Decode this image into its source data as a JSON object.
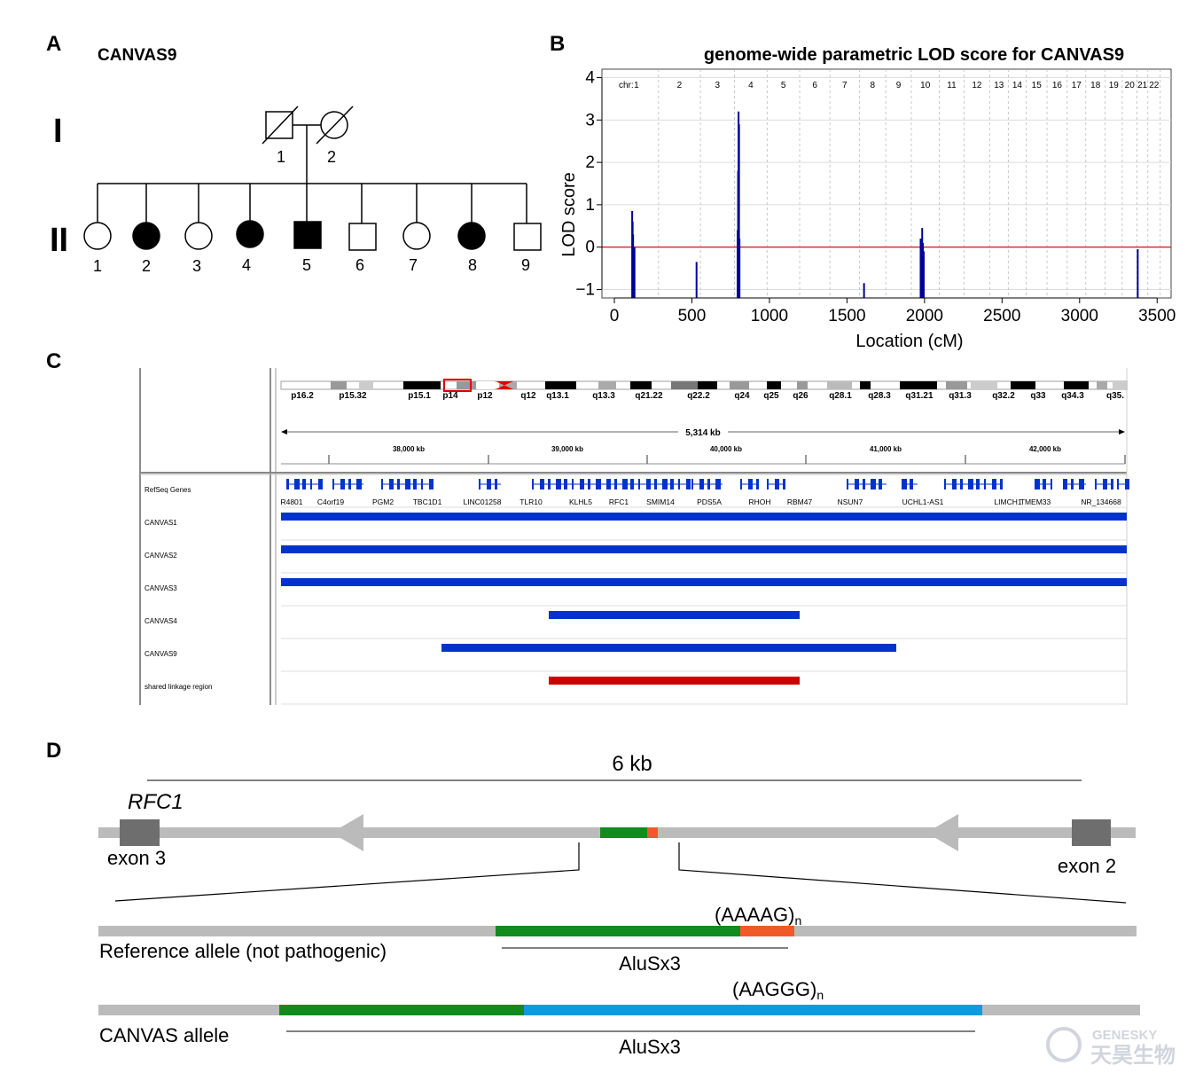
{
  "panels": {
    "A": "A",
    "B": "B",
    "C": "C",
    "D": "D"
  },
  "pedigree": {
    "family_name": "CANVAS9",
    "generations": [
      "I",
      "II"
    ],
    "gen1": [
      {
        "id": "1",
        "sex": "male",
        "affected": false,
        "deceased": true
      },
      {
        "id": "2",
        "sex": "female",
        "affected": false,
        "deceased": true
      }
    ],
    "gen2": [
      {
        "id": "1",
        "sex": "female",
        "affected": false
      },
      {
        "id": "2",
        "sex": "female",
        "affected": true
      },
      {
        "id": "3",
        "sex": "female",
        "affected": false
      },
      {
        "id": "4",
        "sex": "female",
        "affected": true
      },
      {
        "id": "5",
        "sex": "male",
        "affected": true
      },
      {
        "id": "6",
        "sex": "male",
        "affected": false
      },
      {
        "id": "7",
        "sex": "female",
        "affected": false
      },
      {
        "id": "8",
        "sex": "female",
        "affected": true
      },
      {
        "id": "9",
        "sex": "male",
        "affected": false
      }
    ]
  },
  "lod_chart": {
    "chart_data": {
      "type": "line",
      "title": "genome-wide parametric LOD score for CANVAS9",
      "xlabel": "Location (cM)",
      "ylabel": "LOD score",
      "xlim": [
        -80,
        3590
      ],
      "ylim": [
        -1.2,
        4.2
      ],
      "x_ticks": [
        0,
        500,
        1000,
        1500,
        2000,
        2500,
        3000,
        3500
      ],
      "y_ticks": [
        -1,
        0,
        1,
        2,
        3,
        4
      ],
      "threshold_line": 0,
      "threshold_color": "#cc0000",
      "series_color": "#000099",
      "chr_label_prefix": "chr:",
      "chromosomes": [
        {
          "name": "1",
          "start": 0,
          "end": 285
        },
        {
          "name": "2",
          "start": 285,
          "end": 555
        },
        {
          "name": "3",
          "start": 555,
          "end": 775
        },
        {
          "name": "4",
          "start": 775,
          "end": 985
        },
        {
          "name": "5",
          "start": 985,
          "end": 1195
        },
        {
          "name": "6",
          "start": 1195,
          "end": 1390
        },
        {
          "name": "7",
          "start": 1390,
          "end": 1580
        },
        {
          "name": "8",
          "start": 1580,
          "end": 1750
        },
        {
          "name": "9",
          "start": 1750,
          "end": 1915
        },
        {
          "name": "10",
          "start": 1915,
          "end": 2095
        },
        {
          "name": "11",
          "start": 2095,
          "end": 2255
        },
        {
          "name": "12",
          "start": 2255,
          "end": 2420
        },
        {
          "name": "13",
          "start": 2420,
          "end": 2540
        },
        {
          "name": "14",
          "start": 2540,
          "end": 2655
        },
        {
          "name": "15",
          "start": 2655,
          "end": 2790
        },
        {
          "name": "16",
          "start": 2790,
          "end": 2920
        },
        {
          "name": "17",
          "start": 2920,
          "end": 3040
        },
        {
          "name": "18",
          "start": 3040,
          "end": 3165
        },
        {
          "name": "19",
          "start": 3165,
          "end": 3275
        },
        {
          "name": "20",
          "start": 3275,
          "end": 3370
        },
        {
          "name": "21",
          "start": 3370,
          "end": 3440
        },
        {
          "name": "22",
          "start": 3440,
          "end": 3520
        }
      ],
      "peaks": [
        {
          "x": 115,
          "y": 0.85
        },
        {
          "x": 118,
          "y": 0.6
        },
        {
          "x": 121,
          "y": 0.3
        },
        {
          "x": 124,
          "y": -0.2
        },
        {
          "x": 130,
          "y": 0.0
        },
        {
          "x": 530,
          "y": -0.35
        },
        {
          "x": 795,
          "y": 0.4
        },
        {
          "x": 798,
          "y": 1.8
        },
        {
          "x": 801,
          "y": 3.2
        },
        {
          "x": 804,
          "y": 2.9
        },
        {
          "x": 807,
          "y": 0.2
        },
        {
          "x": 1610,
          "y": -0.85
        },
        {
          "x": 1975,
          "y": 0.2
        },
        {
          "x": 1980,
          "y": -0.2
        },
        {
          "x": 1985,
          "y": 0.45
        },
        {
          "x": 1990,
          "y": 0.1
        },
        {
          "x": 1995,
          "y": -0.1
        },
        {
          "x": 3375,
          "y": -0.05
        }
      ]
    }
  },
  "igv": {
    "cytobands": [
      "p16.2",
      "p15.32",
      "p15.1",
      "p14",
      "p12",
      "q12",
      "q13.1",
      "q13.3",
      "q21.22",
      "q22.2",
      "q24",
      "q25",
      "q26",
      "q28.1",
      "q28.3",
      "q31.21",
      "q31.3",
      "q32.2",
      "q33",
      "q34.3",
      "q35."
    ],
    "span_label": "5,314 kb",
    "ruler_labels": [
      "38,000 kb",
      "39,000 kb",
      "40,000 kb",
      "41,000 kb",
      "42,000 kb"
    ],
    "track_names": [
      "RefSeq Genes",
      "CANVAS1",
      "CANVAS2",
      "CANVAS3",
      "CANVAS4",
      "CANVAS9",
      "shared linkage region"
    ],
    "genes": [
      "R4801",
      "C4orf19",
      "PGM2",
      "TBC1D1",
      "LINC01258",
      "TLR10",
      "KLHL5",
      "RFC1",
      "SMIM14",
      "PDS5A",
      "RHOH",
      "RBM47",
      "NSUN7",
      "UCHL1-AS1",
      "LIMCH1",
      "TMEM33",
      "NR_134668"
    ],
    "track_color": "#0033cc",
    "shared_color": "#cc0000"
  },
  "locus": {
    "scale_label": "6 kb",
    "gene_name": "RFC1",
    "exon_left": "exon 3",
    "exon_right": "exon 2",
    "ref_allele_label": "Reference allele (not pathogenic)",
    "ref_repeat": "(AAAAG)",
    "canvas_allele_label": "CANVAS allele",
    "canvas_repeat": "(AAGGG)",
    "repeat_subscript": "n",
    "alu_label_1": "AluSx3",
    "alu_label_2": "AluSx3",
    "colors": {
      "backbone": "#bbbbbb",
      "alu": "#118a1e",
      "ref_repeat": "#f05a28",
      "canvas_repeat": "#0a9be0",
      "exon": "#6e6e6e"
    }
  },
  "watermark": {
    "en": "GENESKY",
    "cn": "天昊生物"
  }
}
